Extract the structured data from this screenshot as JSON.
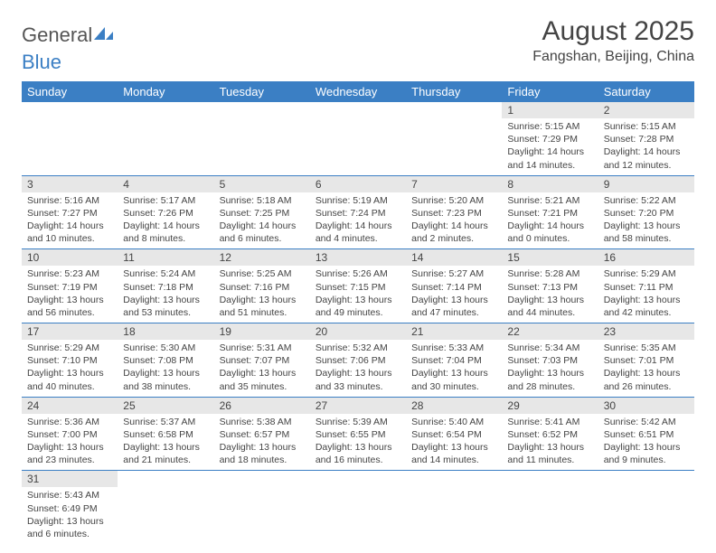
{
  "logo": {
    "text1": "General",
    "text2": "Blue"
  },
  "header": {
    "month": "August 2025",
    "location": "Fangshan, Beijing, China"
  },
  "style": {
    "accent": "#3b7fc4",
    "daynum_bg": "#e7e7e7",
    "text": "#444444"
  },
  "weekdays": [
    "Sunday",
    "Monday",
    "Tuesday",
    "Wednesday",
    "Thursday",
    "Friday",
    "Saturday"
  ],
  "weeks": [
    [
      null,
      null,
      null,
      null,
      null,
      {
        "n": "1",
        "sr": "5:15 AM",
        "ss": "7:29 PM",
        "dl": "14 hours and 14 minutes."
      },
      {
        "n": "2",
        "sr": "5:15 AM",
        "ss": "7:28 PM",
        "dl": "14 hours and 12 minutes."
      }
    ],
    [
      {
        "n": "3",
        "sr": "5:16 AM",
        "ss": "7:27 PM",
        "dl": "14 hours and 10 minutes."
      },
      {
        "n": "4",
        "sr": "5:17 AM",
        "ss": "7:26 PM",
        "dl": "14 hours and 8 minutes."
      },
      {
        "n": "5",
        "sr": "5:18 AM",
        "ss": "7:25 PM",
        "dl": "14 hours and 6 minutes."
      },
      {
        "n": "6",
        "sr": "5:19 AM",
        "ss": "7:24 PM",
        "dl": "14 hours and 4 minutes."
      },
      {
        "n": "7",
        "sr": "5:20 AM",
        "ss": "7:23 PM",
        "dl": "14 hours and 2 minutes."
      },
      {
        "n": "8",
        "sr": "5:21 AM",
        "ss": "7:21 PM",
        "dl": "14 hours and 0 minutes."
      },
      {
        "n": "9",
        "sr": "5:22 AM",
        "ss": "7:20 PM",
        "dl": "13 hours and 58 minutes."
      }
    ],
    [
      {
        "n": "10",
        "sr": "5:23 AM",
        "ss": "7:19 PM",
        "dl": "13 hours and 56 minutes."
      },
      {
        "n": "11",
        "sr": "5:24 AM",
        "ss": "7:18 PM",
        "dl": "13 hours and 53 minutes."
      },
      {
        "n": "12",
        "sr": "5:25 AM",
        "ss": "7:16 PM",
        "dl": "13 hours and 51 minutes."
      },
      {
        "n": "13",
        "sr": "5:26 AM",
        "ss": "7:15 PM",
        "dl": "13 hours and 49 minutes."
      },
      {
        "n": "14",
        "sr": "5:27 AM",
        "ss": "7:14 PM",
        "dl": "13 hours and 47 minutes."
      },
      {
        "n": "15",
        "sr": "5:28 AM",
        "ss": "7:13 PM",
        "dl": "13 hours and 44 minutes."
      },
      {
        "n": "16",
        "sr": "5:29 AM",
        "ss": "7:11 PM",
        "dl": "13 hours and 42 minutes."
      }
    ],
    [
      {
        "n": "17",
        "sr": "5:29 AM",
        "ss": "7:10 PM",
        "dl": "13 hours and 40 minutes."
      },
      {
        "n": "18",
        "sr": "5:30 AM",
        "ss": "7:08 PM",
        "dl": "13 hours and 38 minutes."
      },
      {
        "n": "19",
        "sr": "5:31 AM",
        "ss": "7:07 PM",
        "dl": "13 hours and 35 minutes."
      },
      {
        "n": "20",
        "sr": "5:32 AM",
        "ss": "7:06 PM",
        "dl": "13 hours and 33 minutes."
      },
      {
        "n": "21",
        "sr": "5:33 AM",
        "ss": "7:04 PM",
        "dl": "13 hours and 30 minutes."
      },
      {
        "n": "22",
        "sr": "5:34 AM",
        "ss": "7:03 PM",
        "dl": "13 hours and 28 minutes."
      },
      {
        "n": "23",
        "sr": "5:35 AM",
        "ss": "7:01 PM",
        "dl": "13 hours and 26 minutes."
      }
    ],
    [
      {
        "n": "24",
        "sr": "5:36 AM",
        "ss": "7:00 PM",
        "dl": "13 hours and 23 minutes."
      },
      {
        "n": "25",
        "sr": "5:37 AM",
        "ss": "6:58 PM",
        "dl": "13 hours and 21 minutes."
      },
      {
        "n": "26",
        "sr": "5:38 AM",
        "ss": "6:57 PM",
        "dl": "13 hours and 18 minutes."
      },
      {
        "n": "27",
        "sr": "5:39 AM",
        "ss": "6:55 PM",
        "dl": "13 hours and 16 minutes."
      },
      {
        "n": "28",
        "sr": "5:40 AM",
        "ss": "6:54 PM",
        "dl": "13 hours and 14 minutes."
      },
      {
        "n": "29",
        "sr": "5:41 AM",
        "ss": "6:52 PM",
        "dl": "13 hours and 11 minutes."
      },
      {
        "n": "30",
        "sr": "5:42 AM",
        "ss": "6:51 PM",
        "dl": "13 hours and 9 minutes."
      }
    ],
    [
      {
        "n": "31",
        "sr": "5:43 AM",
        "ss": "6:49 PM",
        "dl": "13 hours and 6 minutes."
      },
      null,
      null,
      null,
      null,
      null,
      null
    ]
  ],
  "labels": {
    "sunrise": "Sunrise:",
    "sunset": "Sunset:",
    "daylight": "Daylight:"
  }
}
